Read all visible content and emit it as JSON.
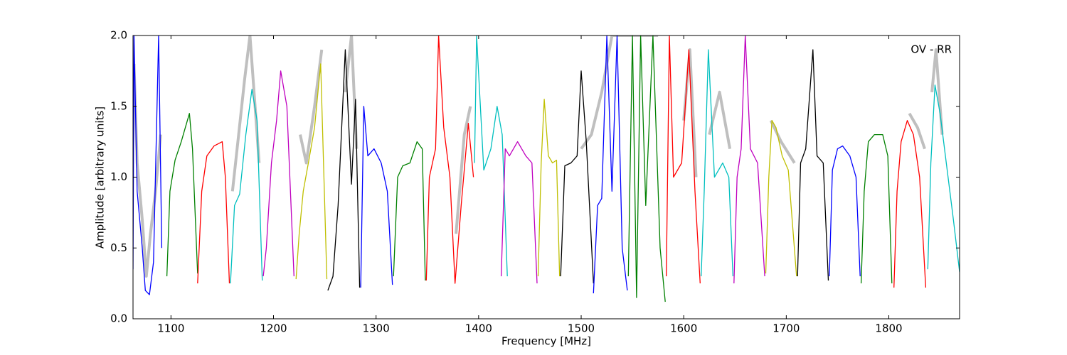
{
  "chart_data": {
    "type": "line",
    "annotation": "OV - RR",
    "x_label": "Frequency [MHz]",
    "y_label": "Amplitude [arbitrary units]",
    "xlim": [
      1063,
      1869
    ],
    "ylim": [
      0,
      2
    ],
    "xticks": [
      1100,
      1200,
      1300,
      1400,
      1500,
      1600,
      1700,
      1800
    ],
    "yticks": [
      {
        "value": 0,
        "label": "0.0"
      },
      0.5,
      {
        "value": 1,
        "label": "1.0"
      },
      1.5,
      {
        "value": 2,
        "label": "2.0"
      }
    ],
    "series": [
      {
        "color": "#bfbfbf",
        "width": 4,
        "x": [
          1064,
          1067,
          1072,
          1076,
          1080,
          1085,
          1090,
          1100,
          1160,
          1166,
          1172,
          1177,
          1182,
          1186,
          1200,
          1226,
          1232,
          1240,
          1247,
          1253,
          1270,
          1276,
          1281,
          1290,
          1378,
          1386,
          1392,
          1400,
          1500,
          1510,
          1520,
          1530,
          1540,
          1560,
          1575,
          1590,
          1600,
          1606,
          1612,
          1620,
          1625,
          1635,
          1645,
          1660,
          1685,
          1695,
          1708,
          1720,
          1820,
          1828,
          1835,
          1840,
          1842,
          1846,
          1852
        ],
        "values": [
          1.8,
          1.1,
          0.7,
          0.3,
          0.6,
          0.9,
          1.3,
          null,
          0.9,
          1.3,
          1.7,
          2.0,
          1.5,
          1.1,
          null,
          1.3,
          1.1,
          1.5,
          1.9,
          null,
          1.6,
          2.0,
          1.2,
          null,
          0.6,
          1.3,
          1.5,
          null,
          1.2,
          1.3,
          1.6,
          2.0,
          2.0,
          2.0,
          2.0,
          null,
          1.4,
          1.9,
          1.0,
          null,
          1.3,
          1.6,
          1.2,
          null,
          1.4,
          1.25,
          1.1,
          null,
          1.45,
          1.35,
          1.2,
          null,
          1.6,
          1.9,
          1.3
        ]
      },
      {
        "color": "#0000ff",
        "x": [
          1063,
          1064,
          1067,
          1072,
          1075,
          1079,
          1083,
          1088,
          1091
        ],
        "values": [
          0.35,
          2.0,
          0.9,
          0.5,
          0.2,
          0.17,
          0.4,
          2.0,
          0.5
        ]
      },
      {
        "color": "#008000",
        "x": [
          1096,
          1099,
          1104,
          1110,
          1118,
          1121,
          1126
        ],
        "values": [
          0.3,
          0.9,
          1.12,
          1.25,
          1.45,
          1.2,
          0.32
        ]
      },
      {
        "color": "#ff0000",
        "x": [
          1126,
          1130,
          1135,
          1142,
          1150,
          1153,
          1157
        ],
        "values": [
          0.25,
          0.9,
          1.15,
          1.22,
          1.25,
          1.0,
          0.25
        ]
      },
      {
        "color": "#00bfbf",
        "x": [
          1158,
          1162,
          1167,
          1173,
          1179,
          1184,
          1189
        ],
        "values": [
          0.25,
          0.8,
          0.88,
          1.3,
          1.62,
          1.4,
          0.27
        ]
      },
      {
        "color": "#bf00bf",
        "x": [
          1190,
          1193,
          1198,
          1203,
          1207,
          1213,
          1220
        ],
        "values": [
          0.3,
          0.5,
          1.1,
          1.4,
          1.75,
          1.5,
          0.3
        ]
      },
      {
        "color": "#bfbf00",
        "x": [
          1222,
          1225,
          1229,
          1234,
          1240,
          1246,
          1252
        ],
        "values": [
          0.28,
          0.6,
          0.9,
          1.1,
          1.35,
          1.8,
          0.28
        ]
      },
      {
        "color": "#000000",
        "x": [
          1253,
          1258,
          1263,
          1270,
          1276,
          1280,
          1284
        ],
        "values": [
          0.2,
          0.3,
          0.8,
          1.9,
          0.95,
          1.55,
          0.22
        ]
      },
      {
        "color": "#0000ff",
        "x": [
          1285,
          1288,
          1292,
          1298,
          1305,
          1311,
          1316
        ],
        "values": [
          0.22,
          1.5,
          1.15,
          1.2,
          1.1,
          0.9,
          0.24
        ]
      },
      {
        "color": "#008000",
        "x": [
          1317,
          1321,
          1326,
          1333,
          1340,
          1345,
          1348
        ],
        "values": [
          0.3,
          1.0,
          1.08,
          1.1,
          1.25,
          1.2,
          0.27
        ]
      },
      {
        "color": "#ff0000",
        "x": [
          1349,
          1352,
          1358,
          1361,
          1366,
          1372,
          1377,
          1383,
          1390,
          1395
        ],
        "values": [
          0.27,
          1.0,
          1.2,
          2.0,
          1.35,
          1.0,
          0.25,
          0.8,
          1.38,
          1.0
        ]
      },
      {
        "color": "#00bfbf",
        "x": [
          1396,
          1398,
          1405,
          1412,
          1418,
          1423,
          1428
        ],
        "values": [
          1.1,
          2.0,
          1.05,
          1.2,
          1.5,
          1.3,
          0.3
        ]
      },
      {
        "color": "#bf00bf",
        "x": [
          1422,
          1426,
          1430,
          1438,
          1446,
          1452,
          1457
        ],
        "values": [
          0.3,
          1.2,
          1.15,
          1.25,
          1.15,
          1.1,
          0.25
        ]
      },
      {
        "color": "#bfbf00",
        "x": [
          1458,
          1461,
          1464,
          1468,
          1472,
          1476,
          1479
        ],
        "values": [
          0.3,
          1.1,
          1.55,
          1.15,
          1.1,
          1.12,
          0.3
        ]
      },
      {
        "color": "#000000",
        "x": [
          1480,
          1484,
          1490,
          1496,
          1500,
          1505,
          1512
        ],
        "values": [
          0.3,
          1.08,
          1.1,
          1.15,
          1.75,
          1.25,
          0.25
        ]
      },
      {
        "color": "#0000ff",
        "x": [
          1512,
          1516,
          1520,
          1525,
          1530,
          1535,
          1540,
          1545
        ],
        "values": [
          0.18,
          0.8,
          0.85,
          2.0,
          0.9,
          2.0,
          0.5,
          0.2
        ]
      },
      {
        "color": "#008000",
        "x": [
          1546,
          1550,
          1554,
          1558,
          1563,
          1570,
          1577,
          1582
        ],
        "values": [
          0.3,
          2.0,
          0.15,
          2.0,
          0.8,
          2.0,
          0.5,
          0.12
        ]
      },
      {
        "color": "#ff0000",
        "x": [
          1583,
          1586,
          1590,
          1598,
          1605,
          1611,
          1616
        ],
        "values": [
          0.3,
          2.0,
          1.0,
          1.1,
          1.9,
          0.9,
          0.25
        ]
      },
      {
        "color": "#00bfbf",
        "x": [
          1617,
          1620,
          1624,
          1630,
          1638,
          1644,
          1648
        ],
        "values": [
          0.3,
          0.9,
          1.9,
          1.0,
          1.1,
          1.0,
          0.3
        ]
      },
      {
        "color": "#bf00bf",
        "x": [
          1649,
          1652,
          1656,
          1660,
          1665,
          1672,
          1679
        ],
        "values": [
          0.25,
          1.0,
          1.2,
          2.0,
          1.2,
          1.1,
          0.3
        ]
      },
      {
        "color": "#bfbf00",
        "x": [
          1680,
          1683,
          1686,
          1690,
          1696,
          1702,
          1710
        ],
        "values": [
          0.32,
          1.0,
          1.4,
          1.35,
          1.15,
          1.05,
          0.3
        ]
      },
      {
        "color": "#000000",
        "x": [
          1711,
          1714,
          1719,
          1726,
          1730,
          1736,
          1741
        ],
        "values": [
          0.3,
          1.1,
          1.2,
          1.9,
          1.15,
          1.1,
          0.27
        ]
      },
      {
        "color": "#0000ff",
        "x": [
          1742,
          1745,
          1750,
          1755,
          1762,
          1768,
          1772
        ],
        "values": [
          0.3,
          1.05,
          1.2,
          1.22,
          1.15,
          1.0,
          0.3
        ]
      },
      {
        "color": "#008000",
        "x": [
          1773,
          1776,
          1780,
          1786,
          1794,
          1799,
          1803
        ],
        "values": [
          0.25,
          0.9,
          1.25,
          1.3,
          1.3,
          1.15,
          0.25
        ]
      },
      {
        "color": "#ff0000",
        "x": [
          1805,
          1808,
          1812,
          1818,
          1824,
          1830,
          1836
        ],
        "values": [
          0.22,
          0.9,
          1.25,
          1.4,
          1.3,
          1.0,
          0.22
        ]
      },
      {
        "color": "#00bfbf",
        "x": [
          1838,
          1841,
          1845,
          1850,
          1856,
          1863,
          1869
        ],
        "values": [
          0.35,
          1.1,
          1.65,
          1.45,
          1.1,
          0.7,
          0.33
        ]
      }
    ]
  }
}
